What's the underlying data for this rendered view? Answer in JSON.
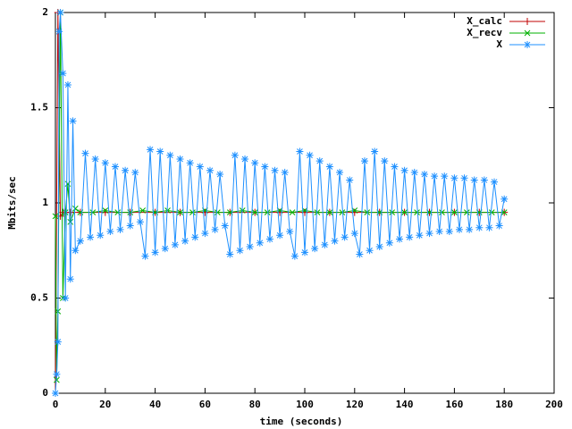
{
  "chart_data": {
    "type": "line",
    "xlabel": "time (seconds)",
    "ylabel": "Mbits/sec",
    "xlim": [
      0,
      200
    ],
    "xticks": [
      0,
      20,
      40,
      60,
      80,
      100,
      120,
      140,
      160,
      180,
      200
    ],
    "ylim": [
      0,
      2
    ],
    "yticks": [
      0,
      0.5,
      1,
      1.5,
      2
    ],
    "legend": "top-right",
    "series": [
      {
        "name": "X_calc",
        "color": "#c00000",
        "marker": "plus",
        "x": [
          0,
          1,
          2,
          3,
          4,
          6,
          10,
          20,
          30,
          40,
          50,
          60,
          70,
          80,
          90,
          100,
          110,
          120,
          130,
          140,
          150,
          160,
          170,
          180
        ],
        "values": [
          0,
          2.0,
          0.93,
          0.95,
          0.95,
          0.95,
          0.95,
          0.95,
          0.95,
          0.95,
          0.95,
          0.95,
          0.95,
          0.95,
          0.95,
          0.95,
          0.95,
          0.95,
          0.95,
          0.95,
          0.95,
          0.95,
          0.95,
          0.95
        ]
      },
      {
        "name": "X_recv",
        "color": "#00b000",
        "marker": "cross",
        "x": [
          0,
          0.5,
          1,
          2,
          3,
          4,
          5,
          6,
          8,
          10,
          15,
          20,
          25,
          30,
          35,
          40,
          45,
          50,
          55,
          60,
          65,
          70,
          75,
          80,
          85,
          90,
          95,
          100,
          105,
          110,
          115,
          120,
          125,
          130,
          135,
          140,
          145,
          150,
          155,
          160,
          165,
          170,
          175,
          180
        ],
        "values": [
          0.93,
          0.07,
          0.43,
          2.0,
          0.5,
          0.95,
          1.1,
          0.9,
          0.97,
          0.95,
          0.95,
          0.96,
          0.95,
          0.95,
          0.96,
          0.95,
          0.96,
          0.95,
          0.95,
          0.96,
          0.95,
          0.95,
          0.96,
          0.95,
          0.95,
          0.96,
          0.95,
          0.96,
          0.95,
          0.95,
          0.95,
          0.96,
          0.95,
          0.95,
          0.95,
          0.95,
          0.95,
          0.95,
          0.95,
          0.95,
          0.95,
          0.95,
          0.95,
          0.95
        ]
      },
      {
        "name": "X",
        "color": "#1e90ff",
        "marker": "star",
        "x": [
          0,
          0.5,
          1,
          1.5,
          2,
          3,
          4,
          5,
          6,
          7,
          8,
          10,
          12,
          14,
          16,
          18,
          20,
          22,
          24,
          26,
          28,
          30,
          32,
          34,
          36,
          38,
          40,
          42,
          44,
          46,
          48,
          50,
          52,
          54,
          56,
          58,
          60,
          62,
          64,
          66,
          68,
          70,
          72,
          74,
          76,
          78,
          80,
          82,
          84,
          86,
          88,
          90,
          92,
          94,
          96,
          98,
          100,
          102,
          104,
          106,
          108,
          110,
          112,
          114,
          116,
          118,
          120,
          122,
          124,
          126,
          128,
          130,
          132,
          134,
          136,
          138,
          140,
          142,
          144,
          146,
          148,
          150,
          152,
          154,
          156,
          158,
          160,
          162,
          164,
          166,
          168,
          170,
          172,
          174,
          176,
          178,
          180
        ],
        "values": [
          0,
          0.1,
          0.27,
          1.9,
          2.0,
          1.68,
          0.5,
          1.62,
          0.6,
          1.43,
          0.75,
          0.8,
          1.26,
          0.82,
          1.23,
          0.83,
          1.21,
          0.85,
          1.19,
          0.86,
          1.17,
          0.88,
          1.16,
          0.9,
          0.72,
          1.28,
          0.74,
          1.27,
          0.76,
          1.25,
          0.78,
          1.23,
          0.8,
          1.21,
          0.82,
          1.19,
          0.84,
          1.17,
          0.86,
          1.15,
          0.88,
          0.73,
          1.25,
          0.75,
          1.23,
          0.77,
          1.21,
          0.79,
          1.19,
          0.81,
          1.17,
          0.83,
          1.16,
          0.85,
          0.72,
          1.27,
          0.74,
          1.25,
          0.76,
          1.22,
          0.78,
          1.19,
          0.8,
          1.16,
          0.82,
          1.12,
          0.84,
          0.73,
          1.22,
          0.75,
          1.27,
          0.77,
          1.22,
          0.79,
          1.19,
          0.81,
          1.17,
          0.82,
          1.16,
          0.83,
          1.15,
          0.84,
          1.14,
          0.85,
          1.14,
          0.85,
          1.13,
          0.86,
          1.13,
          0.86,
          1.12,
          0.87,
          1.12,
          0.87,
          1.11,
          0.88,
          1.02
        ]
      }
    ]
  }
}
